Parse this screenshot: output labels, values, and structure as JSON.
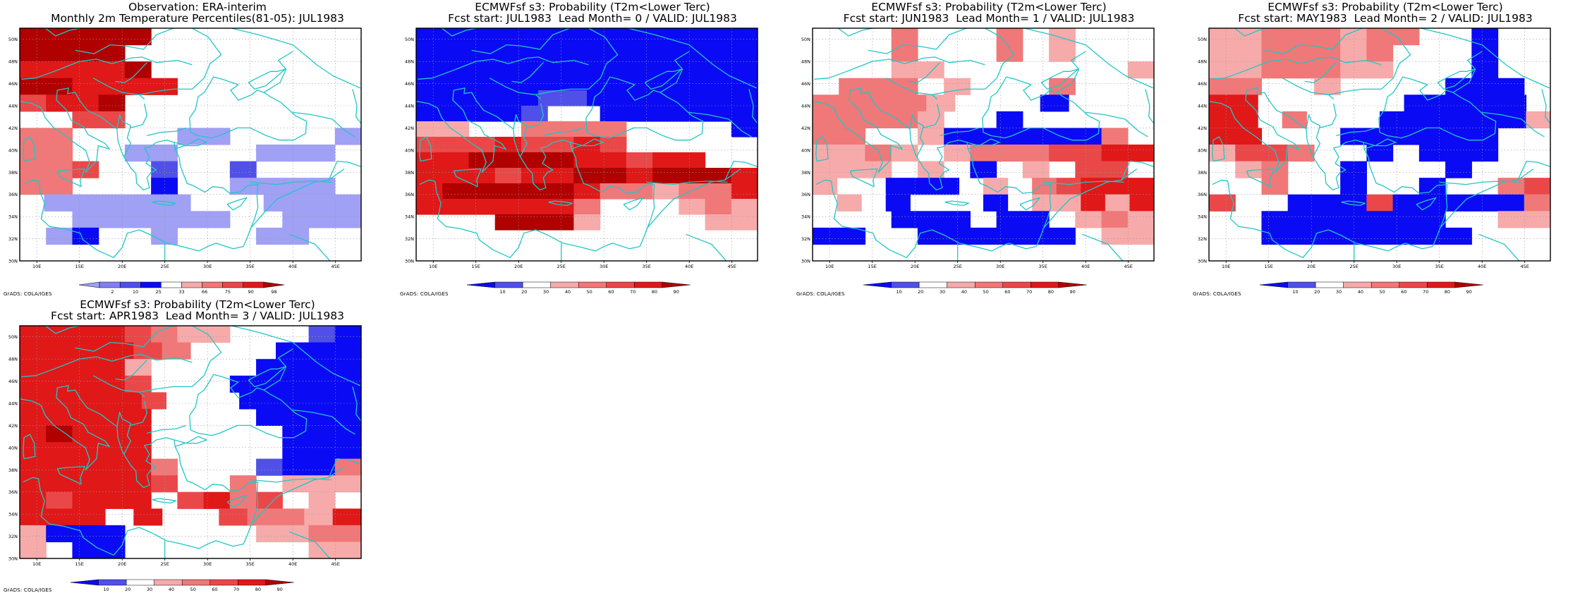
{
  "colors": {
    "coast": "#22c6c6",
    "grid": "#9a9a9a",
    "frame": "#000000"
  },
  "palettes": {
    "obs": [
      "#a0a0f5",
      "#8080f0",
      "#5050e8",
      "#0a0af5",
      "#ffffff",
      "#f7aaaa",
      "#f07878",
      "#ea4848",
      "#e01818",
      "#b00000"
    ],
    "prob": [
      "#0a0af5",
      "#5050e8",
      "#ffffff",
      "#f7aaaa",
      "#f07878",
      "#ea4848",
      "#e01818",
      "#b00000"
    ]
  },
  "lons": [
    "10E",
    "15E",
    "20E",
    "25E",
    "30E",
    "35E",
    "40E",
    "45E"
  ],
  "lats": [
    "30N",
    "32N",
    "34N",
    "36N",
    "38N",
    "40N",
    "42N",
    "44N",
    "46N",
    "48N",
    "50N"
  ],
  "grads_label": "GrADS: COLA/IGES",
  "panels": [
    {
      "title1": "Observation: ERA-interim",
      "title2": "Monthly 2m Temperature Percentiles(81-05): JUL1983",
      "palette": "obs",
      "colorbar_labels": [
        "2",
        "10",
        "25",
        "33",
        "66",
        "75",
        "90",
        "98"
      ],
      "grid": [
        "99999....44..",
        "9999.....44..",
        "88889........",
        "998888.......",
        "7889.........",
        "..77.........",
        "66....00....0",
        "66..00...000.",
        "667..2..2....",
        "66...3..0000.",
        ".000000...0000",
        "..000000..000",
        ".03..0...00..",
        "............."
      ]
    },
    {
      "title1": "ECMWFsf s3: Probability (T2m<Lower Terc)",
      "title2": "Fcst start: JUL1983  Lead Month= 0 / VALID: JUL1983",
      "palette": "prob",
      "colorbar_labels": [
        "10",
        "20",
        "30",
        "40",
        "50",
        "60",
        "70",
        "80",
        "90"
      ],
      "grid": [
        "0000000000000",
        "0000000000000",
        "0000000000000",
        "0000000000000",
        "00000110000000",
        "00001..000000",
        "33..4444....0",
        "55565565.....",
        "66777866566..",
        "6665667767776",
        "6777776443446",
        "6666664...343",
        "...8783....33",
        ".............",
        "............."
      ]
    },
    {
      "title1": "ECMWFsf s3: Probability (T2m<Lower Terc)",
      "title2": "Fcst start: JUN1983  Lead Month= 1 / VALID: JUL1983",
      "palette": "prob",
      "colorbar_labels": [
        "10",
        "20",
        "30",
        "40",
        "50",
        "60",
        "70",
        "80",
        "90"
      ],
      "grid": [
        "...4...4.3...",
        "...4...4.3...",
        "...33.......3",
        ".444.3...4...",
        "44443...0...",
        "44443..0.....",
        "44..30000004.",
        "3343.34445566",
        "333.3.0.3.55.",
        "3..000.3.45666",
        ".3.0...0.33636",
        "...000.00.343",
        "00..000000.33",
        "............."
      ]
    },
    {
      "title1": "ECMWFsf s3: Probability (T2m<Lower Terc)",
      "title2": "Fcst start: MAY1983  Lead Month= 2 / VALID: JUL1983",
      "palette": "prob",
      "colorbar_labels": [
        "10",
        "20",
        "30",
        "40",
        "50",
        "60",
        "70",
        "80",
        "90"
      ],
      "grid": [
        "33444344..0..",
        "3344434...0..",
        "3344433...0..",
        "44..3....000.",
        "66......00000.",
        "66.4...0000003",
        "66...000000..",
        "3554..0.000..",
        ".34..0...0...",
        "..4..0..0..45",
        "5..0005000004",
        "..0000000..33",
        "..00000000...",
        "............."
      ]
    },
    {
      "title1": "ECMWFsf s3: Probability (T2m<Lower Terc)",
      "title2": "Fcst start: APR1983  Lead Month= 3 / VALID: JUL1983",
      "palette": "prob",
      "colorbar_labels": [
        "10",
        "20",
        "30",
        "40",
        "50",
        "60",
        "70",
        "80",
        "90"
      ],
      "grid": [
        "66665433...10",
        "666654...000",
        "66663....0000",
        "66665...00000",
        "666665...00000",
        "66666....0000",
        "67666.....000",
        "66666.....000",
        "666664...1004",
        "666665..4.333",
        "65666.5645.3.",
        "666.6..54436",
        "3000.....3344",
        "3.00.......33"
      ]
    }
  ]
}
